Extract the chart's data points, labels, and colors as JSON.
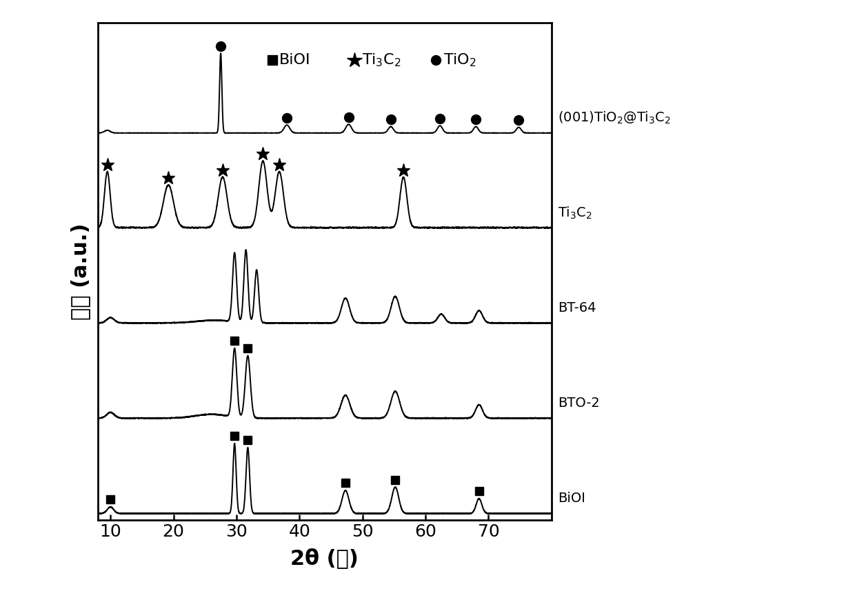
{
  "xlim": [
    8,
    80
  ],
  "xlabel": "2θ (度)",
  "ylabel": "强度 (a.u.)",
  "background_color": "#ffffff",
  "label_fontsize": 22,
  "tick_fontsize": 18,
  "legend_fontsize": 17,
  "curve_labels": [
    "BiOI",
    "BTO-2",
    "BT-64",
    "Ti$_3$C$_2$",
    "(001)TiO$_2$@Ti$_3$C$_2$"
  ],
  "offsets": [
    0.0,
    0.155,
    0.31,
    0.465,
    0.62
  ],
  "line_color": "#000000"
}
